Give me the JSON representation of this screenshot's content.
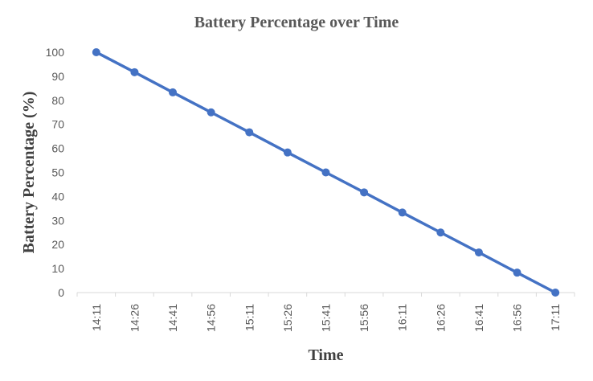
{
  "chart_data": {
    "type": "line",
    "title": "Battery  Percentage over Time",
    "xlabel": "Time",
    "ylabel": "Battery Percentage (%)",
    "categories": [
      "14:11",
      "14:26",
      "14:41",
      "14:56",
      "15:11",
      "15:26",
      "15:41",
      "15:56",
      "16:11",
      "16:26",
      "16:41",
      "16:56",
      "17:11"
    ],
    "series": [
      {
        "values": [
          100,
          91.7,
          83.3,
          75,
          66.7,
          58.3,
          50,
          41.7,
          33.3,
          25,
          16.7,
          8.3,
          0
        ],
        "color": "#4472C4"
      }
    ],
    "ylim": [
      0,
      100
    ],
    "yticks": [
      0,
      10,
      20,
      30,
      40,
      50,
      60,
      70,
      80,
      90,
      100
    ],
    "grid": false,
    "legend": "none",
    "axis_color": "#D9D9D9",
    "text_color": "#595959"
  }
}
